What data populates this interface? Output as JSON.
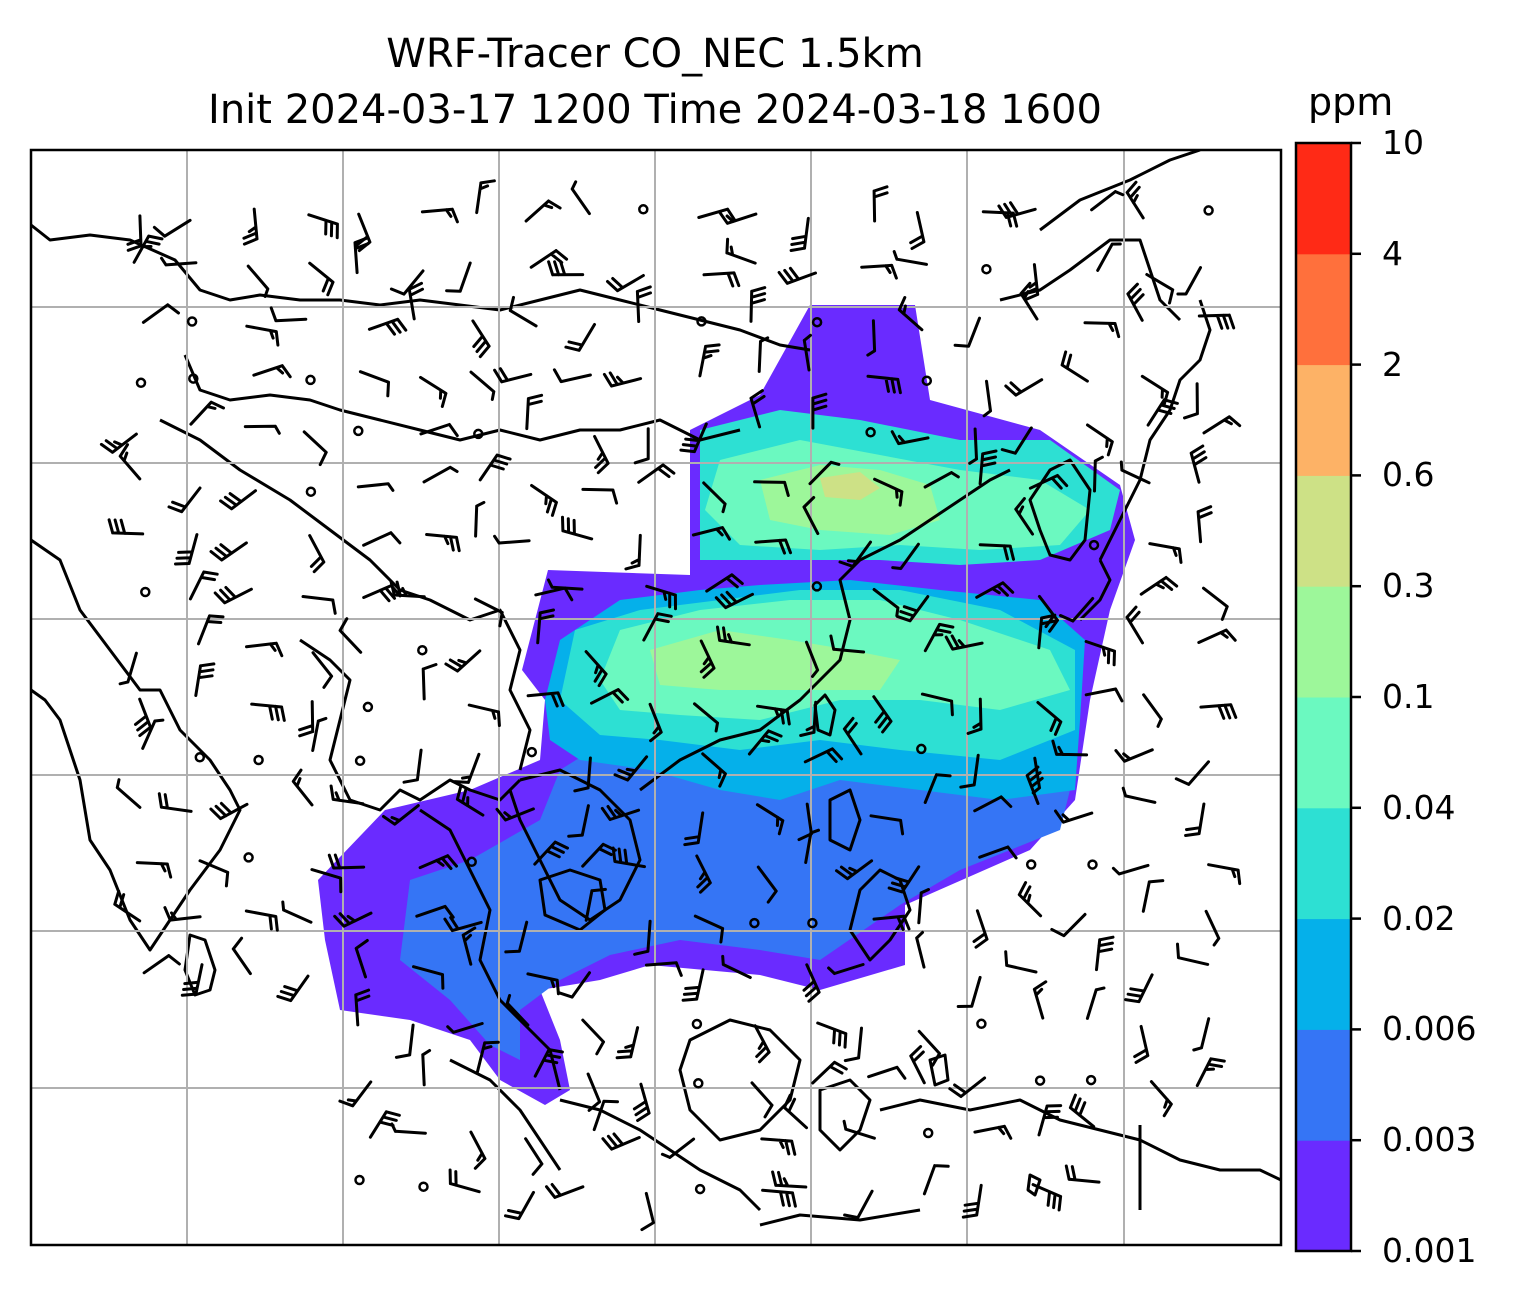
{
  "title": {
    "line1": "WRF-Tracer CO_NEC 1.5km",
    "line2": "Init 2024-03-17 1200 Time 2024-03-18 1600"
  },
  "colorbar": {
    "units": "ppm",
    "levels": [
      "0.001",
      "0.003",
      "0.006",
      "0.02",
      "0.04",
      "0.1",
      "0.3",
      "0.6",
      "2",
      "4",
      "10"
    ],
    "colors": [
      "#6a2bff",
      "#3575f5",
      "#05b0ea",
      "#2de0d3",
      "#6bf9c0",
      "#9df79a",
      "#cde186",
      "#fdb266",
      "#ff703c",
      "#ff2a16"
    ]
  },
  "map": {
    "grid": true,
    "coastline_color": "#000000",
    "field_variable": "CO_NEC tracer concentration",
    "wind_barbs": true
  }
}
